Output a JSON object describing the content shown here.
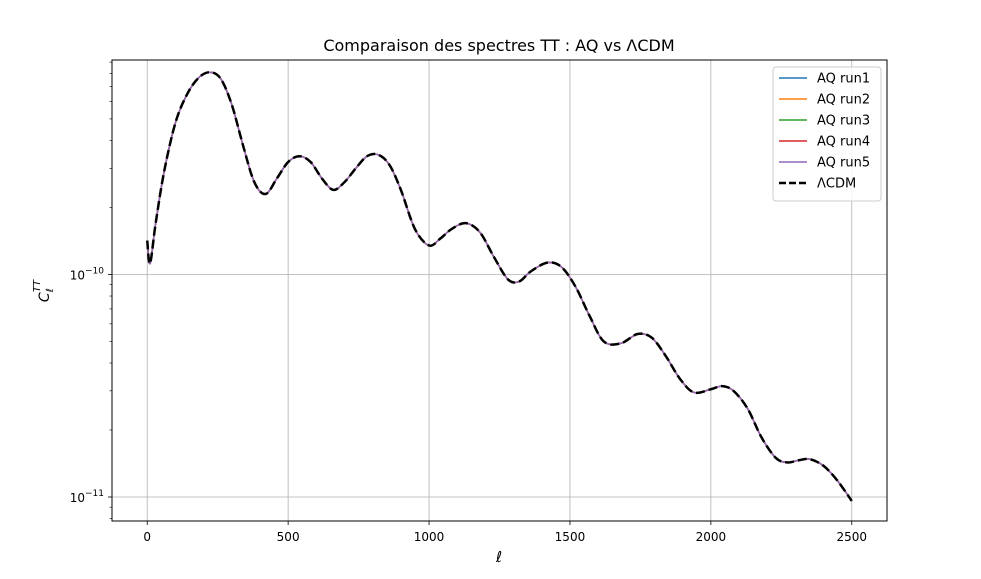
{
  "chart_data": {
    "type": "line",
    "title": "Comparaison des spectres TT : AQ vs ΛCDM",
    "xlabel": "ℓ",
    "ylabel": "C",
    "ylabel_sub": "ℓ",
    "ylabel_sup": "TT",
    "xlim": [
      -125,
      2625
    ],
    "ylim": [
      7.8e-12,
      9.2e-10
    ],
    "yscale": "log",
    "xticks": [
      0,
      500,
      1000,
      1500,
      2000,
      2500
    ],
    "xtick_labels": [
      "0",
      "500",
      "1000",
      "1500",
      "2000",
      "2500"
    ],
    "yticks": [
      1e-11,
      1e-10
    ],
    "ytick_labels": [
      {
        "base": "10",
        "exp": "−11"
      },
      {
        "base": "10",
        "exp": "−10"
      }
    ],
    "grid": true,
    "legend_position": "top-right",
    "x": [
      0,
      10,
      30,
      60,
      100,
      140,
      180,
      220,
      260,
      300,
      340,
      380,
      420,
      460,
      500,
      540,
      580,
      620,
      660,
      700,
      740,
      780,
      820,
      860,
      900,
      950,
      1000,
      1040,
      1080,
      1130,
      1180,
      1230,
      1280,
      1320,
      1360,
      1420,
      1470,
      1520,
      1570,
      1620,
      1680,
      1740,
      1790,
      1840,
      1890,
      1940,
      2000,
      2040,
      2080,
      2130,
      2180,
      2230,
      2270,
      2310,
      2350,
      2400,
      2450,
      2500
    ],
    "series": [
      {
        "name": "AQ run1",
        "color": "#1f77b4",
        "style": "solid",
        "values": [
          1.42e-10,
          1.12e-10,
          1.7e-10,
          2.9e-10,
          4.8e-10,
          6.4e-10,
          7.6e-10,
          8.1e-10,
          7.6e-10,
          5.8e-10,
          3.8e-10,
          2.6e-10,
          2.3e-10,
          2.7e-10,
          3.2e-10,
          3.4e-10,
          3.2e-10,
          2.7e-10,
          2.4e-10,
          2.6e-10,
          3e-10,
          3.4e-10,
          3.45e-10,
          3.1e-10,
          2.4e-10,
          1.6e-10,
          1.35e-10,
          1.45e-10,
          1.6e-10,
          1.7e-10,
          1.55e-10,
          1.2e-10,
          9.5e-11,
          9.3e-11,
          1.03e-10,
          1.13e-10,
          1.08e-10,
          8.8e-11,
          6.5e-11,
          5e-11,
          4.9e-11,
          5.4e-11,
          5.2e-11,
          4.3e-11,
          3.4e-11,
          2.95e-11,
          3.05e-11,
          3.15e-11,
          3e-11,
          2.5e-11,
          1.85e-11,
          1.5e-11,
          1.43e-11,
          1.46e-11,
          1.48e-11,
          1.38e-11,
          1.18e-11,
          9.6e-12
        ]
      },
      {
        "name": "AQ run2",
        "color": "#ff7f0e",
        "style": "solid",
        "values": [
          1.42e-10,
          1.12e-10,
          1.7e-10,
          2.9e-10,
          4.8e-10,
          6.4e-10,
          7.6e-10,
          8.1e-10,
          7.6e-10,
          5.8e-10,
          3.8e-10,
          2.6e-10,
          2.3e-10,
          2.7e-10,
          3.2e-10,
          3.4e-10,
          3.2e-10,
          2.7e-10,
          2.4e-10,
          2.6e-10,
          3e-10,
          3.4e-10,
          3.45e-10,
          3.1e-10,
          2.4e-10,
          1.6e-10,
          1.35e-10,
          1.45e-10,
          1.6e-10,
          1.7e-10,
          1.55e-10,
          1.2e-10,
          9.5e-11,
          9.3e-11,
          1.03e-10,
          1.13e-10,
          1.08e-10,
          8.8e-11,
          6.5e-11,
          5e-11,
          4.9e-11,
          5.4e-11,
          5.2e-11,
          4.3e-11,
          3.4e-11,
          2.95e-11,
          3.05e-11,
          3.15e-11,
          3e-11,
          2.5e-11,
          1.85e-11,
          1.5e-11,
          1.43e-11,
          1.46e-11,
          1.48e-11,
          1.38e-11,
          1.18e-11,
          9.6e-12
        ]
      },
      {
        "name": "AQ run3",
        "color": "#2ca02c",
        "style": "solid",
        "values": [
          1.42e-10,
          1.12e-10,
          1.7e-10,
          2.9e-10,
          4.8e-10,
          6.4e-10,
          7.6e-10,
          8.1e-10,
          7.6e-10,
          5.8e-10,
          3.8e-10,
          2.6e-10,
          2.3e-10,
          2.7e-10,
          3.2e-10,
          3.4e-10,
          3.2e-10,
          2.7e-10,
          2.4e-10,
          2.6e-10,
          3e-10,
          3.4e-10,
          3.45e-10,
          3.1e-10,
          2.4e-10,
          1.6e-10,
          1.35e-10,
          1.45e-10,
          1.6e-10,
          1.7e-10,
          1.55e-10,
          1.2e-10,
          9.5e-11,
          9.3e-11,
          1.03e-10,
          1.13e-10,
          1.08e-10,
          8.8e-11,
          6.5e-11,
          5e-11,
          4.9e-11,
          5.4e-11,
          5.2e-11,
          4.3e-11,
          3.4e-11,
          2.95e-11,
          3.05e-11,
          3.15e-11,
          3e-11,
          2.5e-11,
          1.85e-11,
          1.5e-11,
          1.43e-11,
          1.46e-11,
          1.48e-11,
          1.38e-11,
          1.18e-11,
          9.6e-12
        ]
      },
      {
        "name": "AQ run4",
        "color": "#d62728",
        "style": "solid",
        "values": [
          1.42e-10,
          1.12e-10,
          1.7e-10,
          2.9e-10,
          4.8e-10,
          6.4e-10,
          7.6e-10,
          8.1e-10,
          7.6e-10,
          5.8e-10,
          3.8e-10,
          2.6e-10,
          2.3e-10,
          2.7e-10,
          3.2e-10,
          3.4e-10,
          3.2e-10,
          2.7e-10,
          2.4e-10,
          2.6e-10,
          3e-10,
          3.4e-10,
          3.45e-10,
          3.1e-10,
          2.4e-10,
          1.6e-10,
          1.35e-10,
          1.45e-10,
          1.6e-10,
          1.7e-10,
          1.55e-10,
          1.2e-10,
          9.5e-11,
          9.3e-11,
          1.03e-10,
          1.13e-10,
          1.08e-10,
          8.8e-11,
          6.5e-11,
          5e-11,
          4.9e-11,
          5.4e-11,
          5.2e-11,
          4.3e-11,
          3.4e-11,
          2.95e-11,
          3.05e-11,
          3.15e-11,
          3e-11,
          2.5e-11,
          1.85e-11,
          1.5e-11,
          1.43e-11,
          1.46e-11,
          1.48e-11,
          1.38e-11,
          1.18e-11,
          9.6e-12
        ]
      },
      {
        "name": "AQ run5",
        "color": "#9467bd",
        "style": "solid",
        "values": [
          1.42e-10,
          1.12e-10,
          1.7e-10,
          2.9e-10,
          4.8e-10,
          6.4e-10,
          7.6e-10,
          8.1e-10,
          7.6e-10,
          5.8e-10,
          3.8e-10,
          2.6e-10,
          2.3e-10,
          2.7e-10,
          3.2e-10,
          3.4e-10,
          3.2e-10,
          2.7e-10,
          2.4e-10,
          2.6e-10,
          3e-10,
          3.4e-10,
          3.45e-10,
          3.1e-10,
          2.4e-10,
          1.6e-10,
          1.35e-10,
          1.45e-10,
          1.6e-10,
          1.7e-10,
          1.55e-10,
          1.2e-10,
          9.5e-11,
          9.3e-11,
          1.03e-10,
          1.13e-10,
          1.08e-10,
          8.8e-11,
          6.5e-11,
          5e-11,
          4.9e-11,
          5.4e-11,
          5.2e-11,
          4.3e-11,
          3.4e-11,
          2.95e-11,
          3.05e-11,
          3.15e-11,
          3e-11,
          2.5e-11,
          1.85e-11,
          1.5e-11,
          1.43e-11,
          1.46e-11,
          1.48e-11,
          1.38e-11,
          1.18e-11,
          9.6e-12
        ]
      },
      {
        "name": "ΛCDM",
        "color": "#000000",
        "style": "dashed",
        "values": [
          1.42e-10,
          1.12e-10,
          1.7e-10,
          2.9e-10,
          4.8e-10,
          6.4e-10,
          7.6e-10,
          8.1e-10,
          7.6e-10,
          5.8e-10,
          3.8e-10,
          2.6e-10,
          2.3e-10,
          2.7e-10,
          3.2e-10,
          3.4e-10,
          3.2e-10,
          2.7e-10,
          2.4e-10,
          2.6e-10,
          3e-10,
          3.4e-10,
          3.45e-10,
          3.1e-10,
          2.4e-10,
          1.6e-10,
          1.35e-10,
          1.45e-10,
          1.6e-10,
          1.7e-10,
          1.55e-10,
          1.2e-10,
          9.5e-11,
          9.3e-11,
          1.03e-10,
          1.13e-10,
          1.08e-10,
          8.8e-11,
          6.5e-11,
          5e-11,
          4.9e-11,
          5.4e-11,
          5.2e-11,
          4.3e-11,
          3.4e-11,
          2.95e-11,
          3.05e-11,
          3.15e-11,
          3e-11,
          2.5e-11,
          1.85e-11,
          1.5e-11,
          1.43e-11,
          1.46e-11,
          1.48e-11,
          1.38e-11,
          1.18e-11,
          9.6e-12
        ]
      }
    ]
  }
}
